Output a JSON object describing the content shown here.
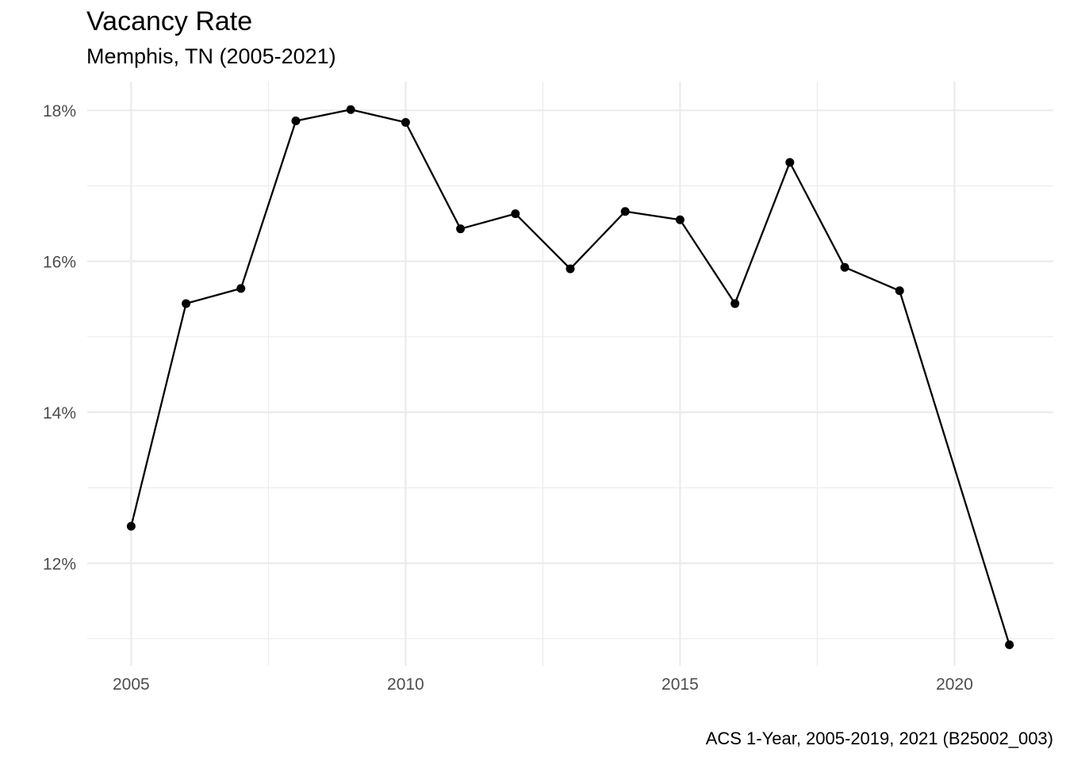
{
  "chart_data": {
    "type": "line",
    "title": "Vacancy Rate",
    "subtitle": "Memphis, TN (2005-2021)",
    "caption": "ACS 1-Year, 2005-2019, 2021 (B25002_003)",
    "xlabel": "",
    "ylabel": "",
    "x": [
      2005,
      2006,
      2007,
      2008,
      2009,
      2010,
      2011,
      2012,
      2013,
      2014,
      2015,
      2016,
      2017,
      2018,
      2019,
      2021
    ],
    "series": [
      {
        "values": [
          12.49,
          15.44,
          15.64,
          17.86,
          18.01,
          17.84,
          16.43,
          16.63,
          15.9,
          16.66,
          16.55,
          15.44,
          17.31,
          15.92,
          15.61,
          10.92
        ]
      }
    ],
    "xlim": [
      2004.2,
      2021.8
    ],
    "ylim": [
      10.64,
      18.38
    ],
    "x_ticks": [
      2005,
      2010,
      2015,
      2020
    ],
    "x_tick_labels": [
      "2005",
      "2010",
      "2015",
      "2020"
    ],
    "y_ticks": [
      12,
      14,
      16,
      18
    ],
    "y_tick_labels": [
      "12%",
      "14%",
      "16%",
      "18%"
    ],
    "grid": true,
    "legend": "none",
    "colors": {
      "line": "#000000",
      "grid": "#ebebeb",
      "text": "#4d4d4d"
    }
  }
}
